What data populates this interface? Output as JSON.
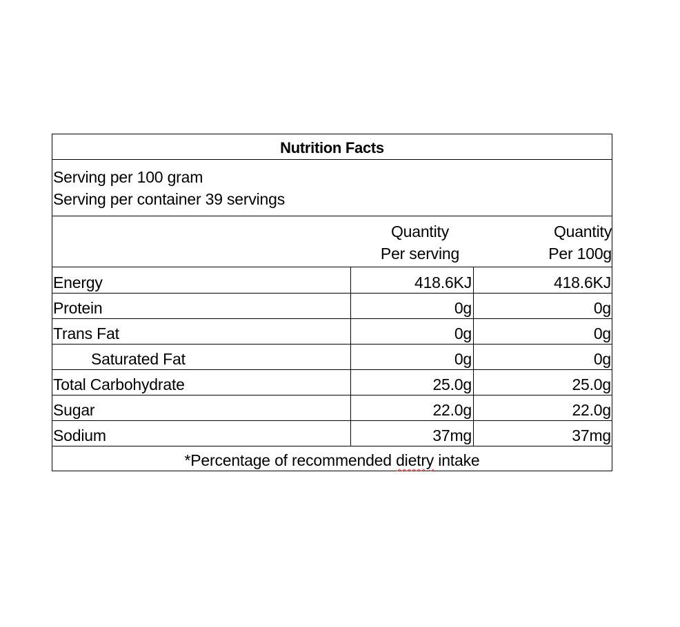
{
  "label": {
    "title": "Nutrition Facts",
    "serving_lines": [
      "Serving per 100 gram",
      "Serving per container 39 servings"
    ],
    "columns": {
      "per_serving": [
        "Quantity",
        "Per serving"
      ],
      "per_100g": [
        "Quantity",
        "Per 100g"
      ]
    },
    "rows": [
      {
        "name": "Energy",
        "per_serving": "418.6KJ",
        "per_100g": "418.6KJ"
      },
      {
        "name": "Protein",
        "per_serving": "0g",
        "per_100g": "0g"
      },
      {
        "name": "Trans Fat",
        "per_serving": "0g",
        "per_100g": "0g"
      },
      {
        "name": "Saturated Fat",
        "per_serving": "0g",
        "per_100g": "0g"
      },
      {
        "name": "Total Carbohydrate",
        "per_serving": "25.0g",
        "per_100g": "25.0g"
      },
      {
        "name": "Sugar",
        "per_serving": "22.0g",
        "per_100g": "22.0g"
      },
      {
        "name": "Sodium",
        "per_serving": "37mg",
        "per_100g": "37mg"
      }
    ],
    "footnote": {
      "before": "*Percentage of recommended ",
      "misspelled": "dietry",
      "after": " intake"
    },
    "colors": {
      "border": "#000000",
      "spellcheck": "#e23b3b"
    }
  }
}
